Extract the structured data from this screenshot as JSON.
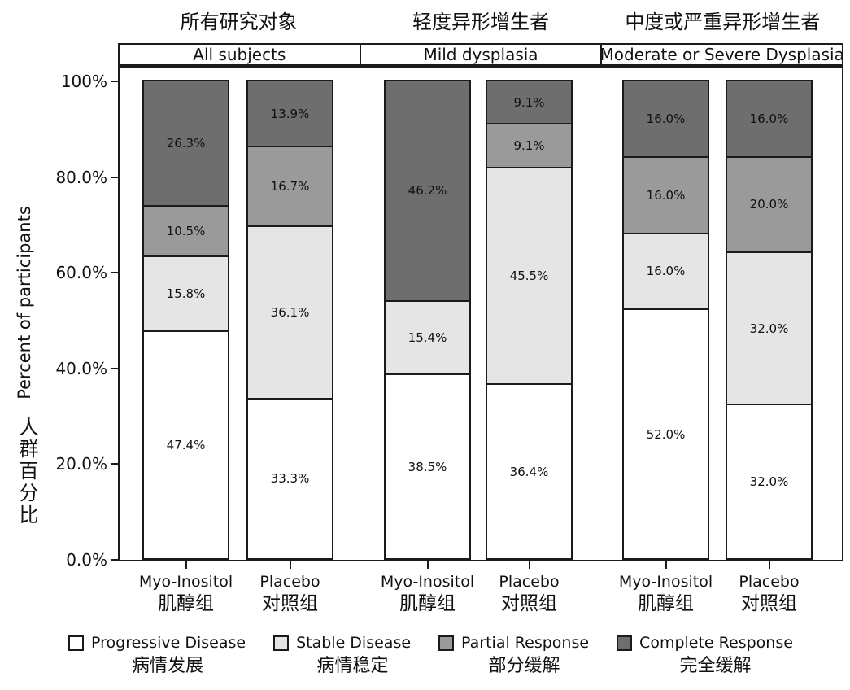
{
  "chart_data": {
    "type": "bar",
    "stacked": true,
    "orientation": "vertical",
    "grid": false,
    "legend_position": "bottom",
    "y_axis": {
      "title_en": "Percent of participants",
      "title_zh": "人群百分比",
      "range": [
        0,
        100
      ],
      "ticks": [
        {
          "value": 0,
          "label": "0.0%"
        },
        {
          "value": 20,
          "label": "20.0%"
        },
        {
          "value": 40,
          "label": "40.0%"
        },
        {
          "value": 60,
          "label": "60.0%"
        },
        {
          "value": 80,
          "label": "80.0%"
        },
        {
          "value": 100,
          "label": "100%"
        }
      ]
    },
    "series": [
      {
        "name_en": "Progressive Disease",
        "name_zh": "病情发展",
        "color": "#ffffff"
      },
      {
        "name_en": "Stable Disease",
        "name_zh": "病情稳定",
        "color": "#e5e5e5"
      },
      {
        "name_en": "Partial Response",
        "name_zh": "部分缓解",
        "color": "#9a9a9a"
      },
      {
        "name_en": "Complete Response",
        "name_zh": "完全缓解",
        "color": "#6e6e6e"
      }
    ],
    "panels": [
      {
        "title_zh": "所有研究对象",
        "title_en": "All subjects",
        "bars": [
          {
            "label_en": "Myo-Inositol",
            "label_zh": "肌醇组",
            "values": [
              47.4,
              15.8,
              10.5,
              26.3
            ],
            "labels": [
              "47.4%",
              "15.8%",
              "10.5%",
              "26.3%"
            ]
          },
          {
            "label_en": "Placebo",
            "label_zh": "对照组",
            "values": [
              33.3,
              36.1,
              16.7,
              13.9
            ],
            "labels": [
              "33.3%",
              "36.1%",
              "16.7%",
              "13.9%"
            ]
          }
        ]
      },
      {
        "title_zh": "轻度异形增生者",
        "title_en": "Mild dysplasia",
        "bars": [
          {
            "label_en": "Myo-Inositol",
            "label_zh": "肌醇组",
            "values": [
              38.5,
              15.4,
              0,
              46.2
            ],
            "labels": [
              "38.5%",
              "15.4%",
              "",
              "46.2%"
            ]
          },
          {
            "label_en": "Placebo",
            "label_zh": "对照组",
            "values": [
              36.4,
              45.5,
              9.1,
              9.1
            ],
            "labels": [
              "36.4%",
              "45.5%",
              "9.1%",
              "9.1%"
            ]
          }
        ]
      },
      {
        "title_zh": "中度或严重异形增生者",
        "title_en": "Moderate or Severe Dysplasia",
        "bars": [
          {
            "label_en": "Myo-Inositol",
            "label_zh": "肌醇组",
            "values": [
              52.0,
              16.0,
              16.0,
              16.0
            ],
            "labels": [
              "52.0%",
              "16.0%",
              "16.0%",
              "16.0%"
            ]
          },
          {
            "label_en": "Placebo",
            "label_zh": "对照组",
            "values": [
              32.0,
              32.0,
              20.0,
              16.0
            ],
            "labels": [
              "32.0%",
              "32.0%",
              "20.0%",
              "16.0%"
            ]
          }
        ]
      }
    ],
    "style": {
      "bar_border_color": "#1b1b1b",
      "axis_color": "#1b1b1b",
      "text_color": "#111111",
      "background": "#ffffff"
    }
  }
}
